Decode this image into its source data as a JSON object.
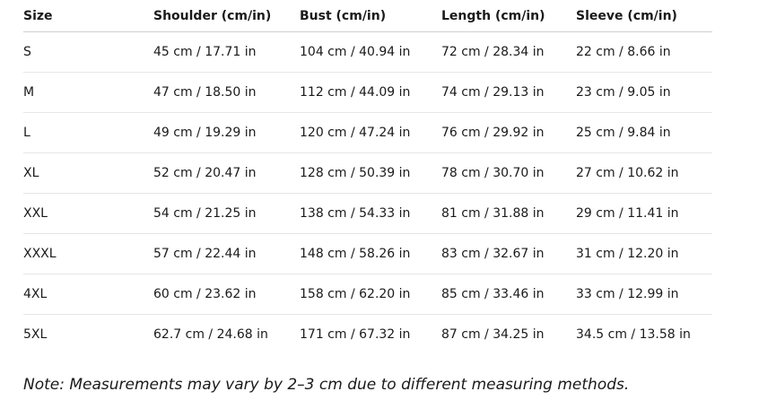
{
  "table": {
    "headers": [
      "Size",
      "Shoulder (cm/in)",
      "Bust (cm/in)",
      "Length (cm/in)",
      "Sleeve (cm/in)"
    ],
    "rows": [
      [
        "S",
        "45 cm / 17.71 in",
        "104 cm / 40.94 in",
        "72 cm / 28.34 in",
        "22 cm / 8.66 in"
      ],
      [
        "M",
        "47 cm / 18.50 in",
        "112 cm / 44.09 in",
        "74 cm / 29.13 in",
        "23 cm / 9.05 in"
      ],
      [
        "L",
        "49 cm / 19.29 in",
        "120 cm / 47.24 in",
        "76 cm / 29.92 in",
        "25 cm / 9.84 in"
      ],
      [
        "XL",
        "52 cm / 20.47 in",
        "128 cm / 50.39 in",
        "78 cm / 30.70 in",
        "27 cm / 10.62 in"
      ],
      [
        "XXL",
        "54 cm / 21.25 in",
        "138 cm / 54.33 in",
        "81 cm / 31.88 in",
        "29 cm / 11.41 in"
      ],
      [
        "XXXL",
        "57 cm / 22.44 in",
        "148 cm / 58.26 in",
        "83 cm / 32.67 in",
        "31 cm / 12.20 in"
      ],
      [
        "4XL",
        "60 cm / 23.62 in",
        "158 cm / 62.20 in",
        "85 cm / 33.46 in",
        "33 cm / 12.99 in"
      ],
      [
        "5XL",
        "62.7 cm / 24.68 in",
        "171 cm / 67.32 in",
        "87 cm / 34.25 in",
        "34.5 cm / 13.58 in"
      ]
    ]
  },
  "note": "Note: Measurements may vary by 2–3 cm due to different measuring methods."
}
